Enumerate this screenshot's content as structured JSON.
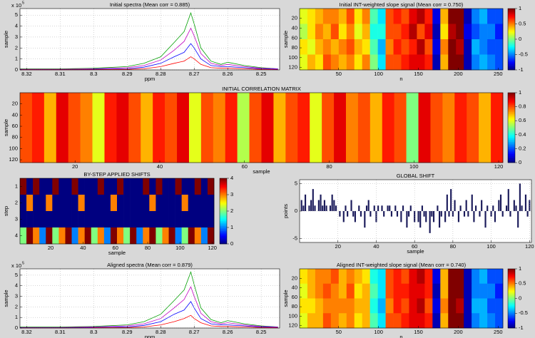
{
  "chart_data": [
    {
      "type": "line",
      "title": "Initial spectra (Mean corr = 0.885)",
      "xlabel": "ppm",
      "ylabel": "sample",
      "exponent_label": "x 10",
      "exponent": 5,
      "grid": true,
      "x": [
        8.322,
        8.31,
        8.3,
        8.29,
        8.285,
        8.28,
        8.276,
        8.273,
        8.271,
        8.27,
        8.268,
        8.265,
        8.262,
        8.26,
        8.255,
        8.25,
        8.245
      ],
      "series": [
        {
          "color": "#00a000",
          "values": [
            0.1,
            0.1,
            0.15,
            0.3,
            0.6,
            1.2,
            2.5,
            3.5,
            5.2,
            4.2,
            2.0,
            0.8,
            0.5,
            0.7,
            0.4,
            0.2,
            0.1
          ]
        },
        {
          "color": "#c000c0",
          "values": [
            0.05,
            0.05,
            0.1,
            0.2,
            0.4,
            0.9,
            1.8,
            2.6,
            3.8,
            3.1,
            1.5,
            0.6,
            0.4,
            0.5,
            0.3,
            0.15,
            0.1
          ]
        },
        {
          "color": "#0000ff",
          "values": [
            0.02,
            0.02,
            0.05,
            0.1,
            0.25,
            0.6,
            1.2,
            1.6,
            2.4,
            2.0,
            1.0,
            0.4,
            0.3,
            0.3,
            0.2,
            0.1,
            0.05
          ]
        },
        {
          "color": "#ff0000",
          "values": [
            0.01,
            0.01,
            0.02,
            0.05,
            0.1,
            0.3,
            0.6,
            0.8,
            1.2,
            1.0,
            0.5,
            0.2,
            0.15,
            0.15,
            0.1,
            0.05,
            0.02
          ]
        }
      ],
      "xlim": [
        8.322,
        8.2445
      ],
      "xticks": [
        8.32,
        8.31,
        8.3,
        8.29,
        8.28,
        8.27,
        8.26,
        8.25
      ],
      "ylim": [
        0,
        5.6
      ],
      "yticks": [
        0,
        1,
        2,
        3,
        4,
        5
      ]
    },
    {
      "type": "heatmap",
      "title": "Initial INT-weighted slope signal (Mean corr = 0.750)",
      "xlabel": "n",
      "ylabel": "sample",
      "y_reverse": true,
      "xlim": [
        1,
        256
      ],
      "xticks": [
        50,
        100,
        150,
        200,
        250
      ],
      "ylim": [
        0,
        125
      ],
      "yticks": [
        20,
        40,
        60,
        80,
        100,
        120
      ],
      "clim": [
        -1,
        1
      ],
      "cticks": [
        -1,
        -0.5,
        0,
        0.5,
        1
      ],
      "z": [
        [
          0.2,
          0.3,
          0.4,
          0.5,
          0.5,
          0.4,
          0.6,
          0.3,
          0.5,
          -0.1,
          -0.3,
          0.6,
          0.7,
          0.6,
          0.8,
          0.9,
          0.7,
          -0.8,
          0.4,
          1,
          1,
          -0.9,
          -0.5,
          -0.4,
          -0.6,
          -0.6
        ],
        [
          0.1,
          0.3,
          0.5,
          0.4,
          0.6,
          0.3,
          0.5,
          0.2,
          0.4,
          -0.2,
          -0.2,
          0.6,
          0.6,
          0.7,
          0.9,
          0.6,
          0.8,
          -0.9,
          0.3,
          0.9,
          1,
          -0.8,
          -0.6,
          -0.5,
          -0.5,
          -0.7
        ],
        [
          0.3,
          0.2,
          0.4,
          0.5,
          0.4,
          0.5,
          0.6,
          0.4,
          0.3,
          -0.1,
          -0.4,
          0.5,
          0.7,
          0.6,
          0.7,
          0.9,
          0.6,
          -0.8,
          0.5,
          1,
          0.9,
          -0.9,
          -0.4,
          -0.5,
          -0.6,
          -0.6
        ],
        [
          0.2,
          0.4,
          0.3,
          0.6,
          0.5,
          0.4,
          0.5,
          0.3,
          0.5,
          0,
          -0.3,
          0.6,
          0.6,
          0.7,
          0.8,
          0.8,
          0.7,
          -0.9,
          0.4,
          1,
          1,
          -0.9,
          -0.5,
          -0.4,
          -0.5,
          -0.6
        ]
      ]
    },
    {
      "type": "heatmap",
      "title": "INITIAL CORRELATION MATRIX",
      "xlabel": "sample",
      "ylabel": "sample",
      "y_reverse": true,
      "xlim": [
        7,
        121
      ],
      "xticks": [
        20,
        40,
        60,
        80,
        100,
        120
      ],
      "ylim": [
        0,
        125
      ],
      "yticks": [
        20,
        40,
        60,
        80,
        100,
        120
      ],
      "clim": [
        0,
        1
      ],
      "cticks": [
        0,
        0.2,
        0.4,
        0.6,
        0.8,
        1
      ],
      "z": [
        [
          0.8,
          0.85,
          0.7,
          0.9,
          0.8,
          0.75,
          0.6,
          0.85,
          0.9,
          0.8,
          0.7,
          0.85,
          0.8,
          0.9,
          0.6,
          0.8,
          0.75,
          0.85,
          0.55,
          0.8,
          0.9,
          0.7,
          0.8,
          0.85,
          0.6,
          0.8,
          0.9,
          0.75,
          0.8,
          0.7,
          0.85,
          0.8,
          0.5,
          0.9,
          0.8,
          0.75,
          0.85,
          0.8,
          0.7,
          0.85
        ]
      ]
    },
    {
      "type": "heatmap",
      "title": "BY-STEP APPLIED SHIFTS",
      "xlabel": "sample",
      "ylabel": "step",
      "y_reverse": true,
      "xlim": [
        1,
        121
      ],
      "xticks": [
        20,
        40,
        60,
        80,
        100,
        120
      ],
      "ylim": [
        0.5,
        4.5
      ],
      "yticks": [
        1,
        2,
        3,
        4
      ],
      "clim": [
        0,
        4
      ],
      "cticks": [
        0,
        1,
        2,
        3,
        4
      ],
      "z": [
        [
          4,
          0,
          4,
          0,
          0,
          4,
          0,
          0,
          4,
          0,
          0,
          0,
          4,
          0,
          0,
          4,
          0,
          0,
          0,
          4,
          0,
          4,
          0,
          0,
          4,
          0,
          0,
          4,
          0,
          4
        ],
        [
          0,
          3,
          0,
          0,
          3,
          0,
          0,
          0,
          0,
          3,
          0,
          0,
          0,
          0,
          3,
          0,
          0,
          0,
          0,
          0,
          3,
          0,
          0,
          0,
          0,
          3,
          0,
          0,
          0,
          0
        ],
        [
          0,
          0,
          0,
          0,
          0,
          0,
          0,
          0,
          0,
          0,
          0,
          0,
          0,
          0,
          0,
          0,
          0,
          0,
          0,
          0,
          0,
          0,
          0,
          0,
          0,
          0,
          0,
          0,
          0,
          0
        ],
        [
          2,
          4,
          3,
          1,
          4,
          2,
          3,
          4,
          1,
          3,
          4,
          2,
          3,
          1,
          4,
          3,
          2,
          4,
          1,
          3,
          4,
          2,
          3,
          4,
          1,
          2,
          4,
          3,
          1,
          4
        ]
      ]
    },
    {
      "type": "bar",
      "title": "GLOBAL SHIFT",
      "xlabel": "sample",
      "ylabel": "points",
      "color": "#1a1a5a",
      "grid": true,
      "x": [
        1,
        2,
        3,
        4,
        5,
        6,
        7,
        8,
        9,
        10,
        11,
        12,
        13,
        14,
        15,
        16,
        17,
        18,
        19,
        20,
        21,
        22,
        23,
        24,
        25,
        26,
        27,
        28,
        29,
        30,
        31,
        32,
        33,
        34,
        35,
        36,
        37,
        38,
        39,
        40,
        41,
        42,
        43,
        44,
        45,
        46,
        47,
        48,
        49,
        50,
        51,
        52,
        53,
        54,
        55,
        56,
        57,
        58,
        59,
        60,
        61,
        62,
        63,
        64,
        65,
        66,
        67,
        68,
        69,
        70,
        71,
        72,
        73,
        74,
        75,
        76,
        77,
        78,
        79,
        80,
        81,
        82,
        83,
        84,
        85,
        86,
        87,
        88,
        89,
        90,
        91,
        92,
        93,
        94,
        95,
        96,
        97,
        98,
        99,
        100,
        101,
        102,
        103,
        104,
        105,
        106,
        107,
        108,
        109,
        110,
        111,
        112,
        113,
        114,
        115,
        116,
        117,
        118,
        119,
        120
      ],
      "values": [
        2,
        1,
        3,
        0,
        1,
        2,
        4,
        1,
        0,
        2,
        3,
        1,
        2,
        1,
        0,
        1,
        3,
        2,
        1,
        0,
        -1,
        0,
        -2,
        1,
        -1,
        0,
        2,
        -1,
        -2,
        0,
        1,
        -1,
        0,
        -3,
        1,
        2,
        -1,
        0,
        1,
        -2,
        1,
        0,
        1,
        -1,
        0,
        1,
        1,
        -1,
        0,
        1,
        -1,
        0,
        -2,
        1,
        0,
        -3,
        -1,
        1,
        0,
        -2,
        0,
        -2,
        -3,
        1,
        -1,
        -2,
        0,
        -4,
        -1,
        -2,
        0,
        1,
        -3,
        -1,
        0,
        -2,
        3,
        -1,
        4,
        -1,
        2,
        0,
        -2,
        1,
        0,
        -1,
        2,
        -1,
        0,
        3,
        -2,
        1,
        0,
        -1,
        2,
        0,
        -3,
        1,
        0,
        -1,
        1,
        -2,
        0,
        2,
        3,
        -1,
        0,
        1,
        4,
        -1,
        0,
        2,
        1,
        -3,
        5,
        1,
        0,
        3,
        -1,
        2
      ],
      "xlim": [
        0,
        121
      ],
      "xticks": [
        20,
        40,
        60,
        80,
        100,
        120
      ],
      "ylim": [
        -5.7,
        5.7
      ],
      "yticks": [
        -5,
        0,
        5
      ]
    },
    {
      "type": "line",
      "title": "Aligned spectra (Mean corr = 0.879)",
      "xlabel": "ppm",
      "ylabel": "sample",
      "exponent_label": "x 10",
      "exponent": 5,
      "grid": true,
      "x": [
        8.322,
        8.31,
        8.3,
        8.29,
        8.285,
        8.28,
        8.276,
        8.273,
        8.271,
        8.27,
        8.268,
        8.265,
        8.262,
        8.26,
        8.255,
        8.25,
        8.245
      ],
      "series": [
        {
          "color": "#00a000",
          "values": [
            0.1,
            0.1,
            0.15,
            0.3,
            0.6,
            1.3,
            2.6,
            3.6,
            5.3,
            4.1,
            1.9,
            0.8,
            0.5,
            0.7,
            0.4,
            0.2,
            0.1
          ]
        },
        {
          "color": "#c000c0",
          "values": [
            0.05,
            0.05,
            0.1,
            0.2,
            0.4,
            0.9,
            1.9,
            2.7,
            3.9,
            3.0,
            1.4,
            0.6,
            0.4,
            0.5,
            0.3,
            0.15,
            0.1
          ]
        },
        {
          "color": "#0000ff",
          "values": [
            0.02,
            0.02,
            0.05,
            0.1,
            0.25,
            0.6,
            1.3,
            1.7,
            2.5,
            1.9,
            0.9,
            0.4,
            0.3,
            0.3,
            0.2,
            0.1,
            0.05
          ]
        },
        {
          "color": "#ff0000",
          "values": [
            0.01,
            0.01,
            0.02,
            0.05,
            0.1,
            0.3,
            0.6,
            0.9,
            1.2,
            0.9,
            0.5,
            0.2,
            0.15,
            0.15,
            0.1,
            0.05,
            0.02
          ]
        }
      ],
      "xlim": [
        8.322,
        8.2445
      ],
      "xticks": [
        8.32,
        8.31,
        8.3,
        8.29,
        8.28,
        8.27,
        8.26,
        8.25
      ],
      "ylim": [
        0,
        5.6
      ],
      "yticks": [
        0,
        1,
        2,
        3,
        4,
        5
      ]
    },
    {
      "type": "heatmap",
      "title": "Aligned INT-weighted slope signal (Mean corr = 0.740)",
      "xlabel": "n",
      "ylabel": "sample",
      "y_reverse": true,
      "xlim": [
        1,
        256
      ],
      "xticks": [
        50,
        100,
        150,
        200,
        250
      ],
      "ylim": [
        0,
        125
      ],
      "yticks": [
        20,
        40,
        60,
        80,
        100,
        120
      ],
      "clim": [
        -1,
        1
      ],
      "cticks": [
        -1,
        -0.5,
        0,
        0.5,
        1
      ],
      "z": [
        [
          0.3,
          0.4,
          0.5,
          0.5,
          0.6,
          0.4,
          0.5,
          0.4,
          0.3,
          -0.2,
          -0.3,
          0.6,
          0.7,
          0.6,
          0.8,
          0.9,
          0.7,
          -0.8,
          0.4,
          1,
          1,
          -0.9,
          -0.5,
          -0.4,
          -0.6,
          -0.6
        ],
        [
          0.2,
          0.4,
          0.5,
          0.6,
          0.5,
          0.4,
          0.6,
          0.3,
          0.4,
          -0.1,
          -0.3,
          0.6,
          0.7,
          0.7,
          0.8,
          0.8,
          0.7,
          -0.9,
          0.4,
          1,
          1,
          -0.9,
          -0.5,
          -0.5,
          -0.5,
          -0.7
        ],
        [
          0.3,
          0.3,
          0.4,
          0.5,
          0.5,
          0.5,
          0.5,
          0.4,
          0.4,
          -0.2,
          -0.4,
          0.5,
          0.7,
          0.6,
          0.8,
          0.9,
          0.6,
          -0.8,
          0.5,
          1,
          0.9,
          -0.9,
          -0.4,
          -0.4,
          -0.6,
          -0.6
        ],
        [
          0.2,
          0.4,
          0.4,
          0.6,
          0.5,
          0.4,
          0.5,
          0.3,
          0.4,
          -0.1,
          -0.3,
          0.6,
          0.6,
          0.7,
          0.8,
          0.8,
          0.7,
          -0.9,
          0.4,
          1,
          1,
          -0.9,
          -0.5,
          -0.4,
          -0.5,
          -0.6
        ]
      ]
    }
  ]
}
